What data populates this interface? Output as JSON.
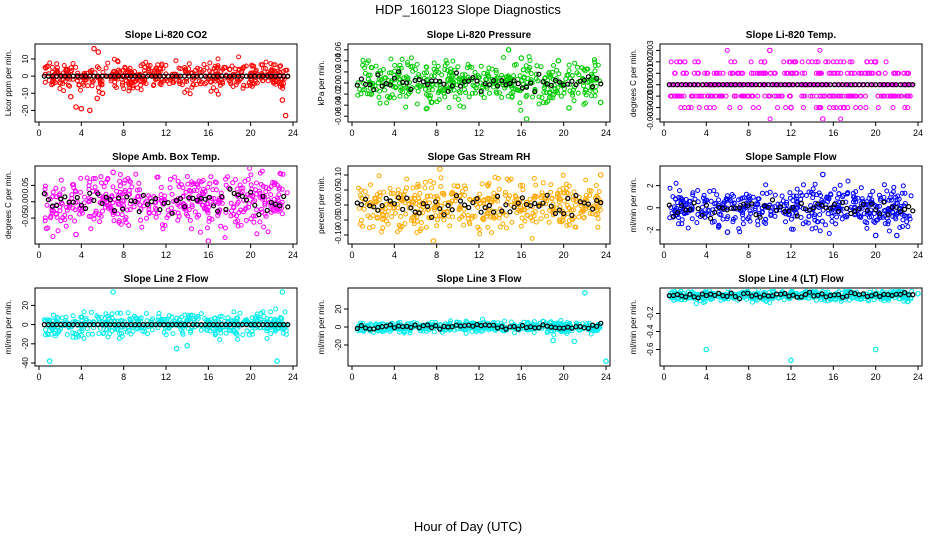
{
  "figure": {
    "title": "HDP_160123  Slope Diagnostics",
    "xlabel": "Hour of Day (UTC)"
  },
  "chart_data": [
    {
      "type": "scatter",
      "title": "Slope Li-820 CO2",
      "ylabel": "Licor ppm per min.",
      "color": "#ff0000",
      "xlim": [
        0,
        24
      ],
      "xticks": [
        0,
        4,
        8,
        12,
        16,
        20,
        24
      ],
      "ylim": [
        -25,
        17
      ],
      "yticks": [
        -20,
        -10,
        0,
        10
      ],
      "spread": 4,
      "outliers": [
        [
          3,
          -12
        ],
        [
          3.5,
          -18
        ],
        [
          4,
          -19
        ],
        [
          4.8,
          -20
        ],
        [
          5.2,
          16
        ],
        [
          5.6,
          14
        ],
        [
          5.5,
          -13
        ],
        [
          6,
          -10
        ],
        [
          23,
          -14
        ],
        [
          23.3,
          -23
        ],
        [
          17.5,
          5
        ],
        [
          18,
          4
        ]
      ]
    },
    {
      "type": "scatter",
      "title": "Slope Li-820 Pressure",
      "ylabel": "kPa per min.",
      "color": "#00cc00",
      "xlim": [
        0,
        24
      ],
      "xticks": [
        0,
        4,
        8,
        12,
        16,
        20,
        24
      ],
      "ylim": [
        -0.065,
        0.065
      ],
      "yticks": [
        -0.06,
        -0.04,
        -0.02,
        0.0,
        0.02,
        0.04,
        0.06
      ],
      "spread": 0.018,
      "outliers": [
        [
          14.8,
          0.06
        ],
        [
          16,
          0.045
        ],
        [
          16.5,
          -0.065
        ],
        [
          19.5,
          0.04
        ],
        [
          20.5,
          -0.045
        ],
        [
          23.5,
          -0.035
        ],
        [
          7.5,
          -0.035
        ]
      ]
    },
    {
      "type": "scatter",
      "title": "Slope Li-820 Temp.",
      "ylabel": "degrees C per min.",
      "color": "#ff00ff",
      "xlim": [
        0,
        24
      ],
      "xticks": [
        0,
        4,
        8,
        12,
        16,
        20,
        24
      ],
      "ylim": [
        -0.003,
        0.0033
      ],
      "yticks": [
        -0.003,
        -0.002,
        -0.001,
        0.0,
        0.001,
        0.002,
        0.003
      ],
      "spread": 0.001,
      "quantized": 0.001,
      "outliers": [
        [
          10,
          0.003
        ],
        [
          9.5,
          0.002
        ],
        [
          15,
          -0.003
        ],
        [
          12,
          -0.002
        ],
        [
          17,
          -0.002
        ],
        [
          20,
          0.002
        ]
      ]
    },
    {
      "type": "scatter",
      "title": "Slope Amb. Box Temp.",
      "ylabel": "degrees C per min.",
      "color": "#ff00ff",
      "xlim": [
        0,
        24
      ],
      "xticks": [
        0,
        4,
        8,
        12,
        16,
        20,
        24
      ],
      "ylim": [
        -0.12,
        0.1
      ],
      "yticks": [
        -0.05,
        0.0,
        0.05
      ],
      "spread": 0.04,
      "outliers": [
        [
          7,
          0.09
        ],
        [
          16,
          -0.12
        ],
        [
          3.5,
          -0.1
        ]
      ]
    },
    {
      "type": "scatter",
      "title": "Slope Gas Stream RH",
      "ylabel": "percent per min.",
      "color": "#ffaa00",
      "xlim": [
        0,
        24
      ],
      "xticks": [
        0,
        4,
        8,
        12,
        16,
        20,
        24
      ],
      "ylim": [
        -0.12,
        0.12
      ],
      "yticks": [
        -0.1,
        -0.05,
        0.0,
        0.05,
        0.1
      ],
      "spread": 0.04,
      "outliers": [
        [
          8.3,
          0.12
        ],
        [
          7.7,
          -0.12
        ],
        [
          23.5,
          0.1
        ]
      ]
    },
    {
      "type": "scatter",
      "title": "Slope Sample Flow",
      "ylabel": "ml/min per min.",
      "color": "#0000ff",
      "xlim": [
        0,
        24
      ],
      "xticks": [
        0,
        4,
        8,
        12,
        16,
        20,
        24
      ],
      "ylim": [
        -3,
        3.5
      ],
      "yticks": [
        -2,
        0,
        2
      ],
      "spread": 0.9,
      "outliers": [
        [
          15,
          3
        ],
        [
          20,
          -2.5
        ],
        [
          22,
          -2.5
        ],
        [
          6,
          -2.2
        ]
      ]
    },
    {
      "type": "scatter",
      "title": "Slope Line 2 Flow",
      "ylabel": "ml/min per min.",
      "color": "#00eeee",
      "xlim": [
        0,
        24
      ],
      "xticks": [
        0,
        4,
        8,
        12,
        16,
        20,
        24
      ],
      "ylim": [
        -40,
        35
      ],
      "yticks": [
        -40,
        -20,
        0,
        20
      ],
      "spread": 6,
      "outliers": [
        [
          7,
          34
        ],
        [
          23,
          34
        ],
        [
          1,
          -38
        ],
        [
          22.5,
          -38
        ],
        [
          13,
          -25
        ],
        [
          14,
          -22
        ]
      ]
    },
    {
      "type": "scatter",
      "title": "Slope Line 3 Flow",
      "ylabel": "ml/min per min.",
      "color": "#00eeee",
      "xlim": [
        0,
        24
      ],
      "xticks": [
        0,
        4,
        8,
        12,
        16,
        20,
        24
      ],
      "ylim": [
        -40,
        40
      ],
      "yticks": [
        -20,
        0,
        20
      ],
      "spread": 3,
      "outliers": [
        [
          22,
          38
        ],
        [
          24,
          -38
        ],
        [
          19,
          -15
        ],
        [
          21,
          -16
        ]
      ]
    },
    {
      "type": "scatter",
      "title": "Slope Line 4 (LT) Flow",
      "ylabel": "ml/min per min.",
      "color": "#00eeee",
      "xlim": [
        0,
        24
      ],
      "xticks": [
        0,
        4,
        8,
        12,
        16,
        20,
        24
      ],
      "ylim": [
        -0.75,
        0.05
      ],
      "yticks": [
        -0.6,
        -0.4,
        -0.2
      ],
      "spread": 0.03,
      "outliers": [
        [
          4,
          -0.6
        ],
        [
          12,
          -0.72
        ],
        [
          20,
          -0.6
        ],
        [
          24,
          0.02
        ]
      ]
    }
  ]
}
